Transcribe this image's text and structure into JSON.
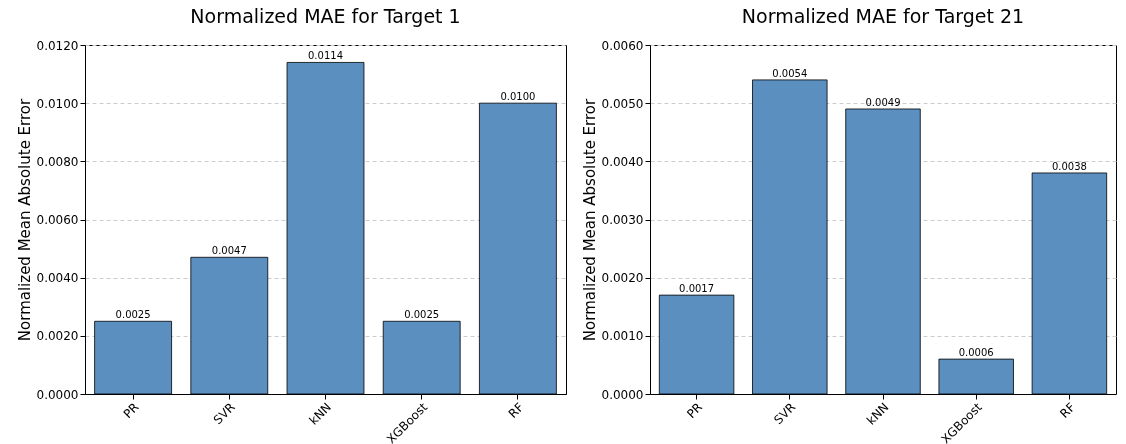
{
  "chart_data": [
    {
      "type": "bar",
      "title": "Normalized MAE for Target 1",
      "ylabel": "Normalized Mean Absolute Error",
      "categories": [
        "PR",
        "SVR",
        "kNN",
        "XGBoost",
        "RF"
      ],
      "values": [
        0.0025,
        0.0047,
        0.0114,
        0.0025,
        0.01
      ],
      "value_labels": [
        "0.0025",
        "0.0047",
        "0.0114",
        "0.0025",
        "0.0100"
      ],
      "color": "#5a8fbf",
      "ylim": [
        0,
        0.012
      ],
      "yticks": [
        {
          "value": 0,
          "label": "0.0000"
        },
        {
          "value": 0.002,
          "label": "0.0020"
        },
        {
          "value": 0.004,
          "label": "0.0040"
        },
        {
          "value": 0.006,
          "label": "0.0060"
        },
        {
          "value": 0.008,
          "label": "0.0080"
        },
        {
          "value": 0.01,
          "label": "0.0100"
        },
        {
          "value": 0.012,
          "label": "0.0120"
        }
      ],
      "grid": "y"
    },
    {
      "type": "bar",
      "title": "Normalized MAE for Target 21",
      "ylabel": "Normalized Mean Absolute Error",
      "categories": [
        "PR",
        "SVR",
        "kNN",
        "XGBoost",
        "RF"
      ],
      "values": [
        0.0017,
        0.0054,
        0.0049,
        0.0006,
        0.0038
      ],
      "value_labels": [
        "0.0017",
        "0.0054",
        "0.0049",
        "0.0006",
        "0.0038"
      ],
      "color": "#5a8fbf",
      "ylim": [
        0,
        0.006
      ],
      "yticks": [
        {
          "value": 0,
          "label": "0.0000"
        },
        {
          "value": 0.001,
          "label": "0.0010"
        },
        {
          "value": 0.002,
          "label": "0.0020"
        },
        {
          "value": 0.003,
          "label": "0.0030"
        },
        {
          "value": 0.004,
          "label": "0.0040"
        },
        {
          "value": 0.005,
          "label": "0.0050"
        },
        {
          "value": 0.006,
          "label": "0.0060"
        }
      ],
      "grid": "y"
    }
  ]
}
